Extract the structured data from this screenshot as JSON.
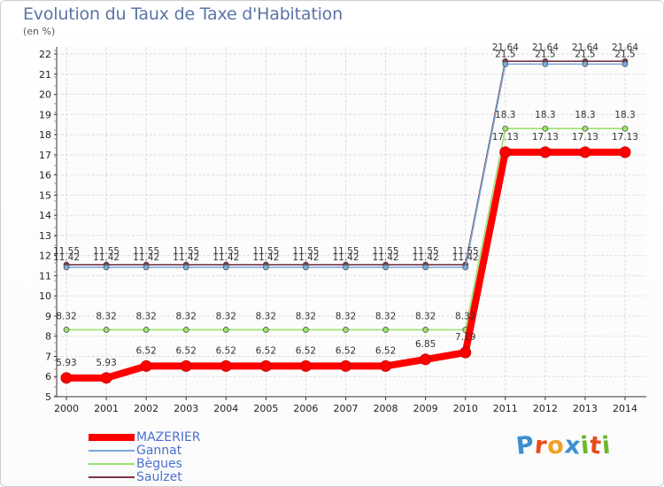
{
  "title": "Evolution du Taux de Taxe d'Habitation",
  "unit_label": "(en %)",
  "logo": [
    "P",
    "r",
    "o",
    "x",
    "i",
    "t",
    "i"
  ],
  "logo_colors": [
    "#3b8fd1",
    "#e74c1c",
    "#f0a020",
    "#3b8fd1",
    "#6bb82e",
    "#e74c1c",
    "#6bb82e"
  ],
  "chart_data": {
    "type": "line",
    "x": [
      "2000",
      "2001",
      "2002",
      "2003",
      "2004",
      "2005",
      "2006",
      "2007",
      "2008",
      "2009",
      "2010",
      "2011",
      "2012",
      "2013",
      "2014"
    ],
    "ylim": [
      5,
      22
    ],
    "yticks": [
      5,
      6,
      7,
      8,
      9,
      10,
      11,
      12,
      13,
      14,
      15,
      16,
      17,
      18,
      19,
      20,
      21,
      22
    ],
    "grid": true,
    "legend_position": "bottom-left",
    "series": [
      {
        "name": "MAZERIER",
        "color": "#ff0000",
        "values": [
          5.93,
          5.93,
          6.52,
          6.52,
          6.52,
          6.52,
          6.52,
          6.52,
          6.52,
          6.85,
          7.19,
          17.13,
          17.13,
          17.13,
          17.13
        ],
        "labels": [
          "5.93",
          "5.93",
          "6.52",
          "6.52",
          "6.52",
          "6.52",
          "6.52",
          "6.52",
          "6.52",
          "6.85",
          "7.19",
          "17.13",
          "17.13",
          "17.13",
          "17.13"
        ]
      },
      {
        "name": "Gannat",
        "color": "#7aa7d9",
        "values": [
          11.42,
          11.42,
          11.42,
          11.42,
          11.42,
          11.42,
          11.42,
          11.42,
          11.42,
          11.42,
          11.42,
          21.5,
          21.5,
          21.5,
          21.5
        ],
        "labels": [
          "11.42",
          "11.42",
          "11.42",
          "11.42",
          "11.42",
          "11.42",
          "11.42",
          "11.42",
          "11.42",
          "11.42",
          "11.42",
          "21.5",
          "21.5",
          "21.5",
          "21.5"
        ]
      },
      {
        "name": "Bègues",
        "color": "#9be36b",
        "values": [
          8.32,
          8.32,
          8.32,
          8.32,
          8.32,
          8.32,
          8.32,
          8.32,
          8.32,
          8.32,
          8.32,
          18.3,
          18.3,
          18.3,
          18.3
        ],
        "labels": [
          "8.32",
          "8.32",
          "8.32",
          "8.32",
          "8.32",
          "8.32",
          "8.32",
          "8.32",
          "8.32",
          "8.32",
          "8.32",
          "18.3",
          "18.3",
          "18.3",
          "18.3"
        ]
      },
      {
        "name": "Saulzet",
        "color": "#7a3548",
        "values": [
          11.55,
          11.55,
          11.55,
          11.55,
          11.55,
          11.55,
          11.55,
          11.55,
          11.55,
          11.55,
          11.55,
          21.64,
          21.64,
          21.64,
          21.64
        ],
        "labels": [
          "11.55",
          "11.55",
          "11.55",
          "11.55",
          "11.55",
          "11.55",
          "11.55",
          "11.55",
          "11.55",
          "11.55",
          "11.55",
          "21.64",
          "21.64",
          "21.64",
          "21.64"
        ]
      }
    ]
  }
}
